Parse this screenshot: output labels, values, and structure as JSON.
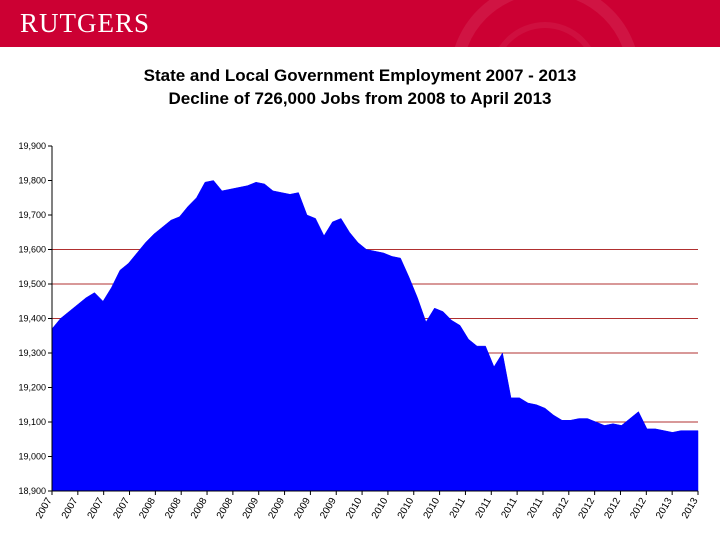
{
  "header": {
    "logo_text": "RUTGERS",
    "brand_color": "#cc0033"
  },
  "chart_data": {
    "type": "area",
    "title": "State and Local Government Employment 2007 - 2013",
    "subtitle": "Decline of 726,000 Jobs from 2008 to April 2013",
    "xlabel": "",
    "ylabel": "",
    "ylim": [
      18900,
      19900
    ],
    "yticks": [
      18900,
      19000,
      19100,
      19200,
      19300,
      19400,
      19500,
      19600,
      19700,
      19800,
      19900
    ],
    "ytick_labels": [
      "18,900",
      "19,000",
      "19,100",
      "19,200",
      "19,300",
      "19,400",
      "19,500",
      "19,600",
      "19,700",
      "19,800",
      "19,900"
    ],
    "gridlines": [
      19100,
      19300,
      19400,
      19500,
      19600
    ],
    "grid_color": "#b03030",
    "fill_color": "#0000ff",
    "xtick_labels": [
      "2007",
      "2007",
      "2007",
      "2007",
      "2008",
      "2008",
      "2008",
      "2008",
      "2009",
      "2009",
      "2009",
      "2009",
      "2010",
      "2010",
      "2010",
      "2010",
      "2011",
      "2011",
      "2011",
      "2011",
      "2012",
      "2012",
      "2012",
      "2012",
      "2013",
      "2013"
    ],
    "series": [
      {
        "values": [
          19370,
          19400,
          19420,
          19440,
          19460,
          19475,
          19450,
          19490,
          19540,
          19560,
          19590,
          19620,
          19645,
          19665,
          19685,
          19695,
          19725,
          19750,
          19795,
          19800,
          19770,
          19775,
          19780,
          19785,
          19795,
          19790,
          19770,
          19765,
          19760,
          19765,
          19700,
          19690,
          19640,
          19680,
          19690,
          19650,
          19620,
          19600,
          19595,
          19590,
          19580,
          19575,
          19520,
          19460,
          19390,
          19430,
          19420,
          19395,
          19380,
          19340,
          19320,
          19320,
          19260,
          19300,
          19170,
          19170,
          19155,
          19150,
          19140,
          19120,
          19105,
          19105,
          19110,
          19110,
          19100,
          19090,
          19095,
          19090,
          19110,
          19130,
          19080,
          19080,
          19075,
          19070,
          19075,
          19075,
          19075
        ]
      }
    ]
  }
}
